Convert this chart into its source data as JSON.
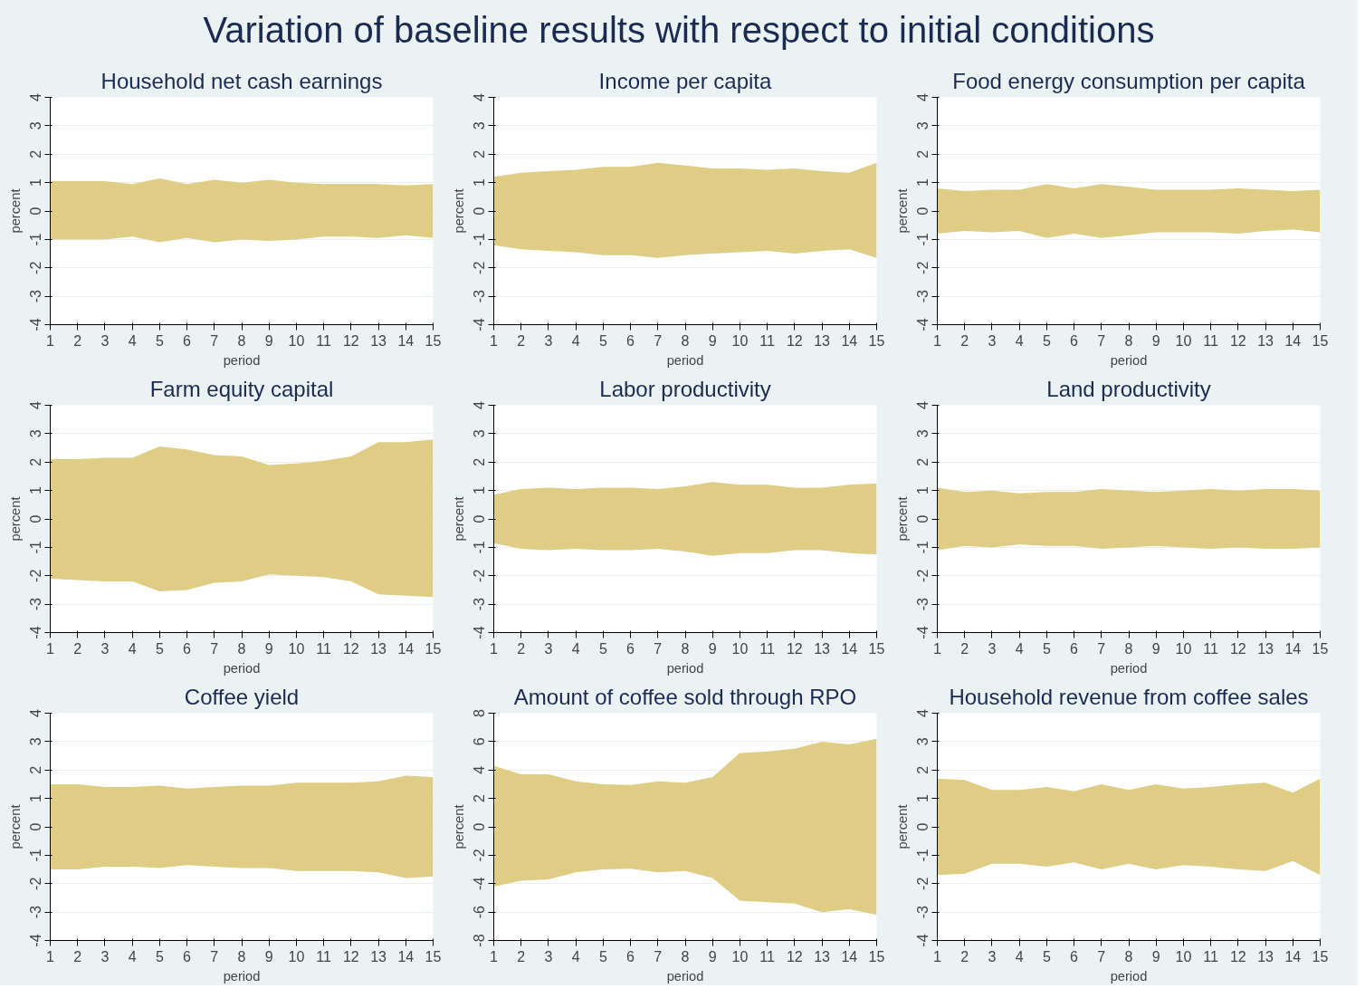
{
  "chart_data": [
    {
      "type": "other",
      "title": "Variation of baseline results with respect to initial conditions"
    },
    {
      "type": "area",
      "title": "Household net cash earnings",
      "xlabel": "period",
      "ylabel": "percent",
      "x": [
        1,
        2,
        3,
        4,
        5,
        6,
        7,
        8,
        9,
        10,
        11,
        12,
        13,
        14,
        15
      ],
      "xlim": [
        1,
        15
      ],
      "xticks": [
        1,
        2,
        3,
        4,
        5,
        6,
        7,
        8,
        9,
        10,
        11,
        12,
        13,
        14,
        15
      ],
      "ylim": [
        -4,
        4
      ],
      "yticks": [
        -4,
        -3,
        -2,
        -1,
        0,
        1,
        2,
        3,
        4
      ],
      "grid": "y",
      "series": [
        {
          "color": "#e0cd85",
          "values": [
            1.05,
            1.05,
            1.05,
            0.95,
            1.15,
            0.95,
            1.1,
            1.0,
            1.1,
            1.0,
            0.95,
            0.95,
            0.95,
            0.9,
            0.95
          ]
        },
        {
          "color": "#e0cd85",
          "values": [
            -1.0,
            -1.0,
            -1.0,
            -0.9,
            -1.1,
            -0.95,
            -1.1,
            -1.0,
            -1.05,
            -1.0,
            -0.9,
            -0.9,
            -0.95,
            -0.85,
            -0.95
          ]
        }
      ]
    },
    {
      "type": "area",
      "title": "Income per capita",
      "xlabel": "period",
      "ylabel": "percent",
      "x": [
        1,
        2,
        3,
        4,
        5,
        6,
        7,
        8,
        9,
        10,
        11,
        12,
        13,
        14,
        15
      ],
      "xlim": [
        1,
        15
      ],
      "xticks": [
        1,
        2,
        3,
        4,
        5,
        6,
        7,
        8,
        9,
        10,
        11,
        12,
        13,
        14,
        15
      ],
      "ylim": [
        -4,
        4
      ],
      "yticks": [
        -4,
        -3,
        -2,
        -1,
        0,
        1,
        2,
        3,
        4
      ],
      "grid": "y",
      "series": [
        {
          "color": "#e0cd85",
          "values": [
            1.2,
            1.35,
            1.4,
            1.45,
            1.55,
            1.55,
            1.7,
            1.6,
            1.5,
            1.5,
            1.45,
            1.5,
            1.4,
            1.35,
            1.7
          ]
        },
        {
          "color": "#e0cd85",
          "values": [
            -1.2,
            -1.35,
            -1.4,
            -1.45,
            -1.55,
            -1.55,
            -1.65,
            -1.55,
            -1.5,
            -1.45,
            -1.4,
            -1.5,
            -1.4,
            -1.35,
            -1.65
          ]
        }
      ]
    },
    {
      "type": "area",
      "title": "Food energy consumption per capita",
      "xlabel": "period",
      "ylabel": "percent",
      "x": [
        1,
        2,
        3,
        4,
        5,
        6,
        7,
        8,
        9,
        10,
        11,
        12,
        13,
        14,
        15
      ],
      "xlim": [
        1,
        15
      ],
      "xticks": [
        1,
        2,
        3,
        4,
        5,
        6,
        7,
        8,
        9,
        10,
        11,
        12,
        13,
        14,
        15
      ],
      "ylim": [
        -4,
        4
      ],
      "yticks": [
        -4,
        -3,
        -2,
        -1,
        0,
        1,
        2,
        3,
        4
      ],
      "grid": "y",
      "series": [
        {
          "color": "#e0cd85",
          "values": [
            0.8,
            0.7,
            0.75,
            0.75,
            0.95,
            0.8,
            0.95,
            0.85,
            0.75,
            0.75,
            0.75,
            0.8,
            0.75,
            0.7,
            0.75
          ]
        },
        {
          "color": "#e0cd85",
          "values": [
            -0.8,
            -0.7,
            -0.75,
            -0.7,
            -0.95,
            -0.8,
            -0.95,
            -0.85,
            -0.75,
            -0.75,
            -0.75,
            -0.8,
            -0.7,
            -0.65,
            -0.75
          ]
        }
      ]
    },
    {
      "type": "area",
      "title": "Farm equity capital",
      "xlabel": "period",
      "ylabel": "percent",
      "x": [
        1,
        2,
        3,
        4,
        5,
        6,
        7,
        8,
        9,
        10,
        11,
        12,
        13,
        14,
        15
      ],
      "xlim": [
        1,
        15
      ],
      "xticks": [
        1,
        2,
        3,
        4,
        5,
        6,
        7,
        8,
        9,
        10,
        11,
        12,
        13,
        14,
        15
      ],
      "ylim": [
        -4,
        4
      ],
      "yticks": [
        -4,
        -3,
        -2,
        -1,
        0,
        1,
        2,
        3,
        4
      ],
      "grid": "y",
      "series": [
        {
          "color": "#e0cd85",
          "values": [
            2.1,
            2.1,
            2.15,
            2.15,
            2.55,
            2.45,
            2.25,
            2.2,
            1.9,
            1.95,
            2.05,
            2.2,
            2.7,
            2.7,
            2.8
          ]
        },
        {
          "color": "#e0cd85",
          "values": [
            -2.1,
            -2.15,
            -2.2,
            -2.2,
            -2.55,
            -2.5,
            -2.25,
            -2.2,
            -1.95,
            -2.0,
            -2.05,
            -2.2,
            -2.65,
            -2.7,
            -2.75
          ]
        }
      ]
    },
    {
      "type": "area",
      "title": "Labor productivity",
      "xlabel": "period",
      "ylabel": "percent",
      "x": [
        1,
        2,
        3,
        4,
        5,
        6,
        7,
        8,
        9,
        10,
        11,
        12,
        13,
        14,
        15
      ],
      "xlim": [
        1,
        15
      ],
      "xticks": [
        1,
        2,
        3,
        4,
        5,
        6,
        7,
        8,
        9,
        10,
        11,
        12,
        13,
        14,
        15
      ],
      "ylim": [
        -4,
        4
      ],
      "yticks": [
        -4,
        -3,
        -2,
        -1,
        0,
        1,
        2,
        3,
        4
      ],
      "grid": "y",
      "series": [
        {
          "color": "#e0cd85",
          "values": [
            0.85,
            1.05,
            1.1,
            1.05,
            1.1,
            1.1,
            1.05,
            1.15,
            1.3,
            1.2,
            1.2,
            1.1,
            1.1,
            1.2,
            1.25
          ]
        },
        {
          "color": "#e0cd85",
          "values": [
            -0.85,
            -1.05,
            -1.1,
            -1.05,
            -1.1,
            -1.1,
            -1.05,
            -1.15,
            -1.3,
            -1.2,
            -1.2,
            -1.1,
            -1.1,
            -1.2,
            -1.25
          ]
        }
      ]
    },
    {
      "type": "area",
      "title": "Land productivity",
      "xlabel": "period",
      "ylabel": "percent",
      "x": [
        1,
        2,
        3,
        4,
        5,
        6,
        7,
        8,
        9,
        10,
        11,
        12,
        13,
        14,
        15
      ],
      "xlim": [
        1,
        15
      ],
      "xticks": [
        1,
        2,
        3,
        4,
        5,
        6,
        7,
        8,
        9,
        10,
        11,
        12,
        13,
        14,
        15
      ],
      "ylim": [
        -4,
        4
      ],
      "yticks": [
        -4,
        -3,
        -2,
        -1,
        0,
        1,
        2,
        3,
        4
      ],
      "grid": "y",
      "series": [
        {
          "color": "#e0cd85",
          "values": [
            1.1,
            0.95,
            1.0,
            0.9,
            0.95,
            0.95,
            1.05,
            1.0,
            0.95,
            1.0,
            1.05,
            1.0,
            1.05,
            1.05,
            1.0
          ]
        },
        {
          "color": "#e0cd85",
          "values": [
            -1.1,
            -0.95,
            -1.0,
            -0.9,
            -0.95,
            -0.95,
            -1.05,
            -1.0,
            -0.95,
            -1.0,
            -1.05,
            -1.0,
            -1.05,
            -1.05,
            -1.0
          ]
        }
      ]
    },
    {
      "type": "area",
      "title": "Coffee yield",
      "xlabel": "period",
      "ylabel": "percent",
      "x": [
        1,
        2,
        3,
        4,
        5,
        6,
        7,
        8,
        9,
        10,
        11,
        12,
        13,
        14,
        15
      ],
      "xlim": [
        1,
        15
      ],
      "xticks": [
        1,
        2,
        3,
        4,
        5,
        6,
        7,
        8,
        9,
        10,
        11,
        12,
        13,
        14,
        15
      ],
      "ylim": [
        -4,
        4
      ],
      "yticks": [
        -4,
        -3,
        -2,
        -1,
        0,
        1,
        2,
        3,
        4
      ],
      "grid": "y",
      "series": [
        {
          "color": "#e0cd85",
          "values": [
            1.5,
            1.5,
            1.4,
            1.4,
            1.45,
            1.35,
            1.4,
            1.45,
            1.45,
            1.55,
            1.55,
            1.55,
            1.6,
            1.8,
            1.75
          ]
        },
        {
          "color": "#e0cd85",
          "values": [
            -1.5,
            -1.5,
            -1.4,
            -1.4,
            -1.45,
            -1.35,
            -1.4,
            -1.45,
            -1.45,
            -1.55,
            -1.55,
            -1.55,
            -1.6,
            -1.8,
            -1.75
          ]
        }
      ]
    },
    {
      "type": "area",
      "title": "Amount of coffee sold through RPO",
      "xlabel": "period",
      "ylabel": "percent",
      "x": [
        1,
        2,
        3,
        4,
        5,
        6,
        7,
        8,
        9,
        10,
        11,
        12,
        13,
        14,
        15
      ],
      "xlim": [
        1,
        15
      ],
      "xticks": [
        1,
        2,
        3,
        4,
        5,
        6,
        7,
        8,
        9,
        10,
        11,
        12,
        13,
        14,
        15
      ],
      "ylim": [
        -8,
        8
      ],
      "yticks": [
        -8,
        -6,
        -4,
        -2,
        0,
        2,
        4,
        6,
        8
      ],
      "grid": "y",
      "series": [
        {
          "color": "#e0cd85",
          "values": [
            4.3,
            3.7,
            3.7,
            3.2,
            3.0,
            2.95,
            3.2,
            3.1,
            3.5,
            5.2,
            5.3,
            5.5,
            6.0,
            5.8,
            6.2
          ]
        },
        {
          "color": "#e0cd85",
          "values": [
            -4.2,
            -3.8,
            -3.7,
            -3.2,
            -3.0,
            -2.95,
            -3.2,
            -3.1,
            -3.6,
            -5.2,
            -5.3,
            -5.4,
            -6.0,
            -5.8,
            -6.2
          ]
        }
      ]
    },
    {
      "type": "area",
      "title": "Household revenue from coffee sales",
      "xlabel": "period",
      "ylabel": "percent",
      "x": [
        1,
        2,
        3,
        4,
        5,
        6,
        7,
        8,
        9,
        10,
        11,
        12,
        13,
        14,
        15
      ],
      "xlim": [
        1,
        15
      ],
      "xticks": [
        1,
        2,
        3,
        4,
        5,
        6,
        7,
        8,
        9,
        10,
        11,
        12,
        13,
        14,
        15
      ],
      "ylim": [
        -4,
        4
      ],
      "yticks": [
        -4,
        -3,
        -2,
        -1,
        0,
        1,
        2,
        3,
        4
      ],
      "grid": "y",
      "series": [
        {
          "color": "#e0cd85",
          "values": [
            1.7,
            1.65,
            1.3,
            1.3,
            1.4,
            1.25,
            1.5,
            1.3,
            1.5,
            1.35,
            1.4,
            1.5,
            1.55,
            1.2,
            1.7
          ]
        },
        {
          "color": "#e0cd85",
          "values": [
            -1.7,
            -1.65,
            -1.3,
            -1.3,
            -1.4,
            -1.25,
            -1.5,
            -1.3,
            -1.5,
            -1.35,
            -1.4,
            -1.5,
            -1.55,
            -1.2,
            -1.7
          ]
        }
      ]
    }
  ]
}
